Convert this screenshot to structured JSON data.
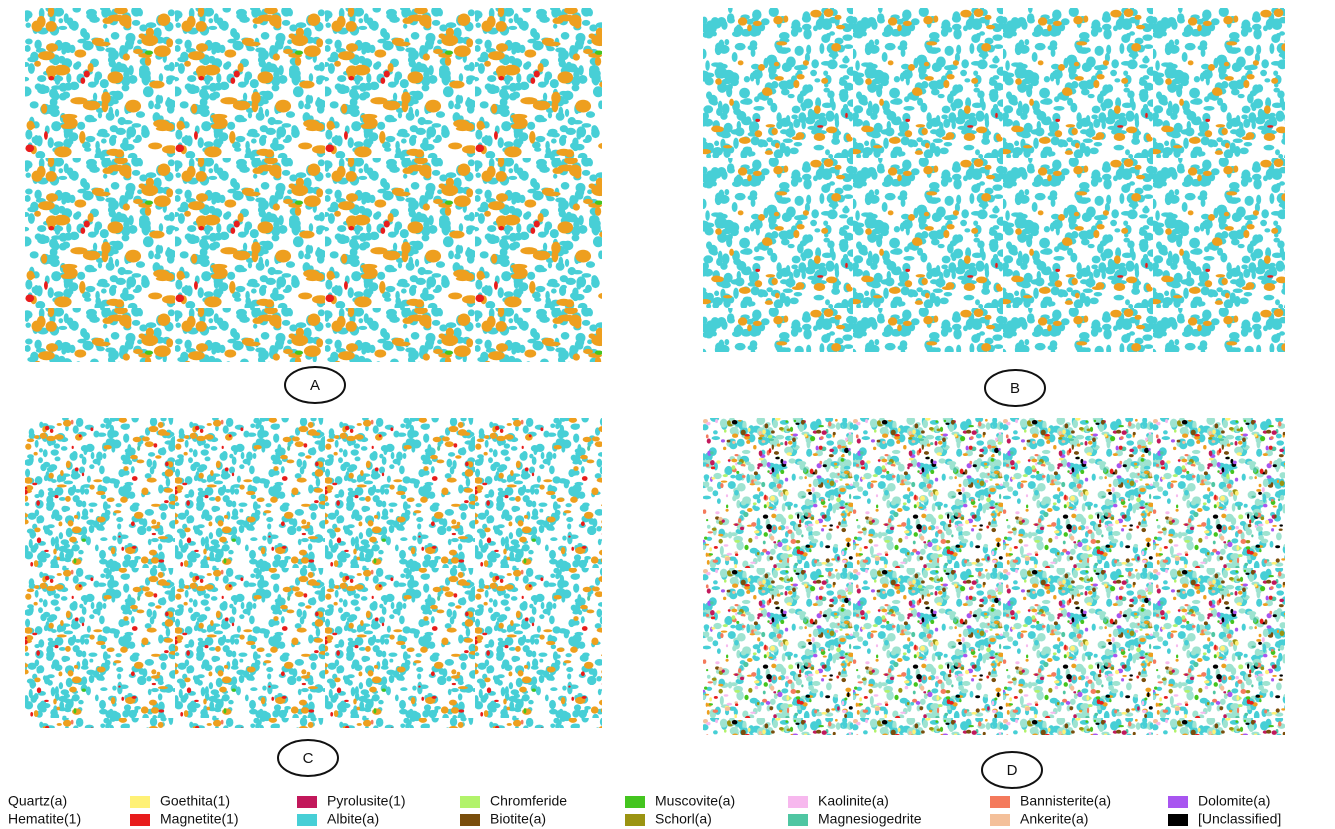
{
  "panels": [
    {
      "label": "A"
    },
    {
      "label": "B"
    },
    {
      "label": "C"
    },
    {
      "label": "D"
    }
  ],
  "legend": [
    {
      "name": "Quartz(a)",
      "color": "#ffffff"
    },
    {
      "name": "Goethita(1)",
      "color": "#fff176"
    },
    {
      "name": "Pyrolusite(1)",
      "color": "#c2185b"
    },
    {
      "name": "Chromferide",
      "color": "#b2f36b"
    },
    {
      "name": "Muscovite(a)",
      "color": "#44c51f"
    },
    {
      "name": "Kaolinite(a)",
      "color": "#f7b8ee"
    },
    {
      "name": "Bannisterite(a)",
      "color": "#f47a5c"
    },
    {
      "name": "Dolomite(a)",
      "color": "#a855f0"
    },
    {
      "name": "Hematite(1)",
      "color": "#ee9f1e"
    },
    {
      "name": "Magnetite(1)",
      "color": "#e81c1c"
    },
    {
      "name": "Albite(a)",
      "color": "#47cfd6"
    },
    {
      "name": "Biotite(a)",
      "color": "#7a4e0c"
    },
    {
      "name": "Schorl(a)",
      "color": "#9b9412"
    },
    {
      "name": "Magnesiogedrite",
      "color": "#4fc6a2"
    },
    {
      "name": "Ankerite(a)",
      "color": "#f4c09a"
    },
    {
      "name": "[Unclassified]",
      "color": "#000000"
    }
  ]
}
